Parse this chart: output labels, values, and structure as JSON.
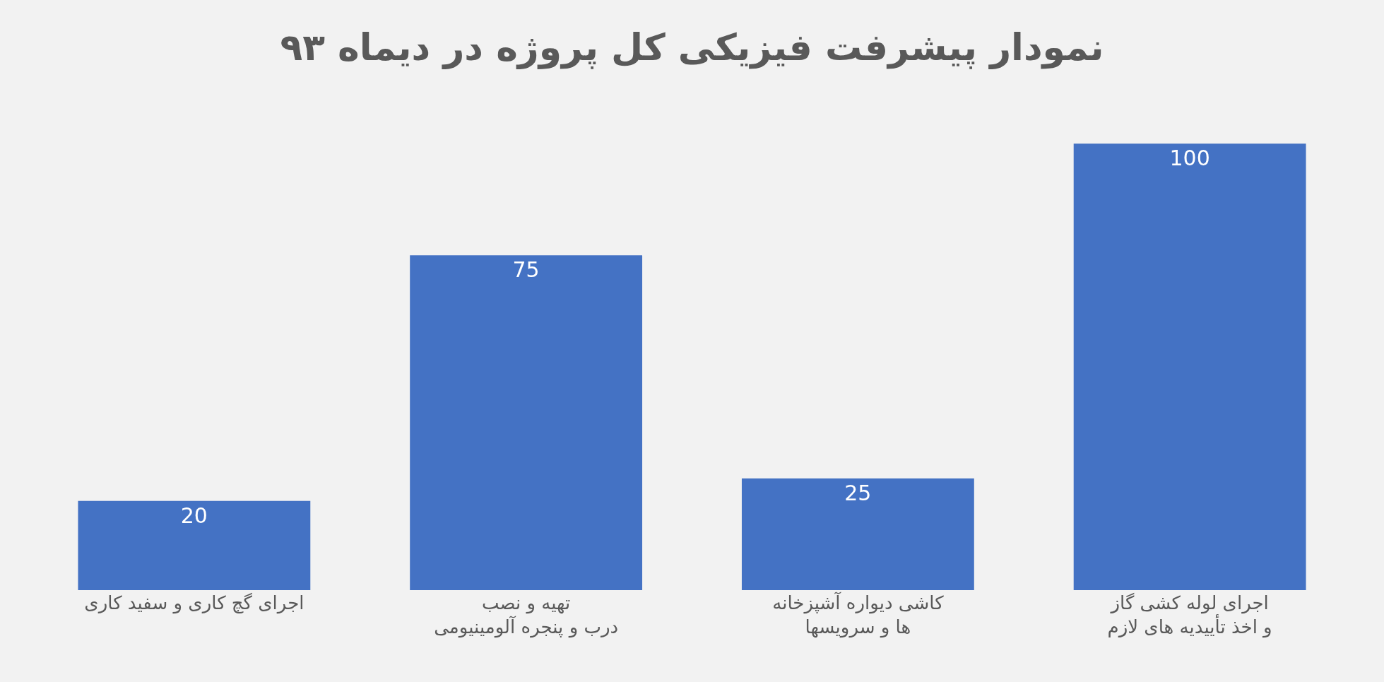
{
  "chart_data": {
    "type": "bar",
    "title": "نمودار پیشرفت فیزیکی کل پروژه در دیماه ۹۳",
    "categories": [
      "اجرای گچ کاری و سفید کاری",
      "تهیه و نصب درب و پنجره آلومینیومی",
      "کاشی دیواره آشپزخانه ها و سرویسها",
      "اجرای لوله کشی گاز و اخذ تأییدیه های لازم"
    ],
    "values": [
      20,
      75,
      25,
      100
    ],
    "color": "#4472c4",
    "data_labels": true,
    "grid": false,
    "legend": false
  }
}
